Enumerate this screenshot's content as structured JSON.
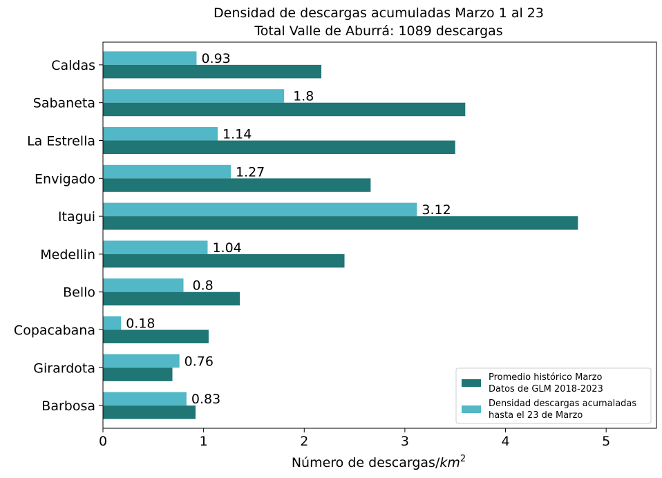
{
  "chart_data": {
    "type": "bar",
    "orientation": "horizontal",
    "title": "Densidad de descargas acumuladas Marzo 1 al 23",
    "subtitle": "Total Valle de Aburrá: 1089 descargas",
    "xlabel": "Número de descargas/",
    "xlabel_unit": "km",
    "xlabel_exp": "2",
    "xlim": [
      0,
      5.5
    ],
    "xticks": [
      "0",
      "1",
      "2",
      "3",
      "4",
      "5"
    ],
    "grid": false,
    "legend_position": "lower-right",
    "categories": [
      "Caldas",
      "Sabaneta",
      "La Estrella",
      "Envigado",
      "Itagui",
      "Medellin",
      "Bello",
      "Copacabana",
      "Girardota",
      "Barbosa"
    ],
    "series": [
      {
        "name_line1": "Promedio histórico Marzo",
        "name_line2": "Datos de GLM 2018-2023",
        "color": "#207575",
        "values": [
          2.17,
          3.6,
          3.5,
          2.66,
          4.72,
          2.4,
          1.36,
          1.05,
          0.69,
          0.92
        ]
      },
      {
        "name_line1": "Densidad descargas acumaladas",
        "name_line2": "hasta el 23 de Marzo",
        "color": "#52b7c6",
        "values": [
          0.93,
          1.8,
          1.14,
          1.27,
          3.12,
          1.04,
          0.8,
          0.18,
          0.76,
          0.83
        ],
        "labels": [
          "0.93",
          "1.8",
          "1.14",
          "1.27",
          "3.12",
          "1.04",
          "0.8",
          "0.18",
          "0.76",
          "0.83"
        ]
      }
    ]
  }
}
